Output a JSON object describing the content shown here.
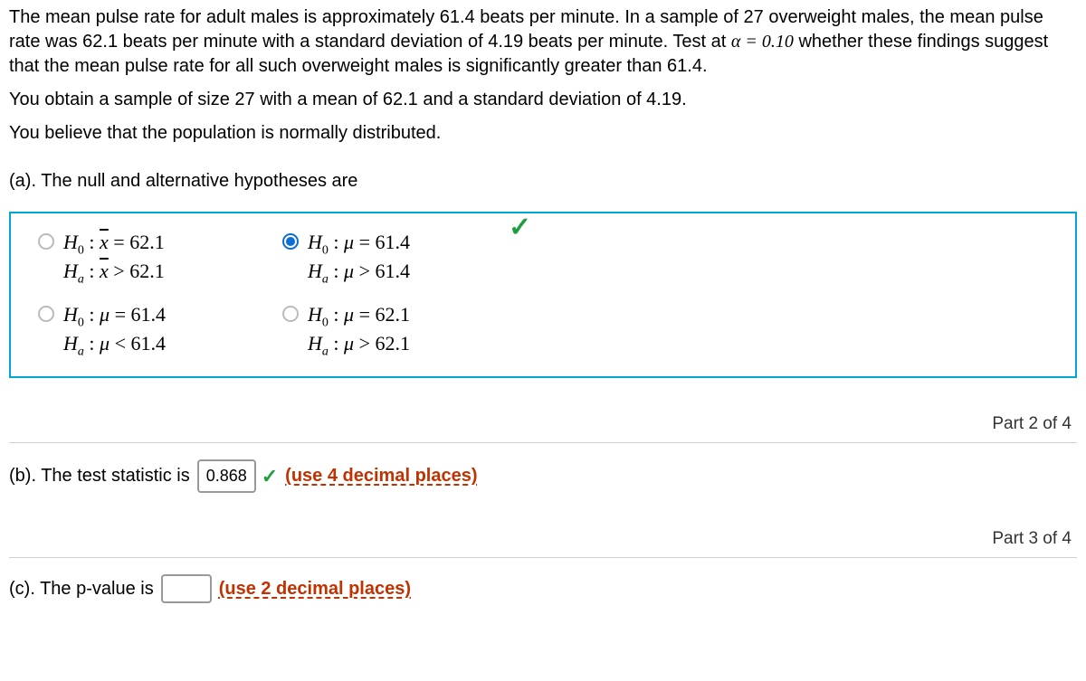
{
  "problem": {
    "line1": "The mean pulse rate for adult males is approximately 61.4 beats per minute.  In a sample of 27 overweight males, the mean pulse rate was 62.1 beats per minute with a standard deviation of 4.19 beats per minute.  Test at ",
    "alpha_expr": "α = 0.10",
    "line1b": " whether these findings suggest that the mean pulse rate for all such overweight males is significantly greater than 61.4.",
    "line2": "You obtain a sample of size 27 with a mean of 62.1 and a standard deviation of 4.19.",
    "line3": "You believe that the population is normally distributed."
  },
  "partA": {
    "label": "(a). The null and alternative hypotheses are",
    "options": [
      {
        "id": "opt1",
        "selected": false,
        "h0_lhs": "x̄",
        "h0_val": "62.1",
        "ha_lhs": "x̄",
        "ha_op": ">",
        "ha_val": "62.1",
        "bar": true
      },
      {
        "id": "opt2",
        "selected": true,
        "h0_lhs": "μ",
        "h0_val": "61.4",
        "ha_lhs": "μ",
        "ha_op": ">",
        "ha_val": "61.4",
        "bar": false
      },
      {
        "id": "opt3",
        "selected": false,
        "h0_lhs": "μ",
        "h0_val": "61.4",
        "ha_lhs": "μ",
        "ha_op": "<",
        "ha_val": "61.4",
        "bar": false
      },
      {
        "id": "opt4",
        "selected": false,
        "h0_lhs": "μ",
        "h0_val": "62.1",
        "ha_lhs": "μ",
        "ha_op": ">",
        "ha_val": "62.1",
        "bar": false
      }
    ]
  },
  "part2Label": "Part 2 of 4",
  "partB": {
    "prefix": "(b). The test statistic is",
    "answer": "0.868",
    "correct": true,
    "hint": "(use 4 decimal places)"
  },
  "part3Label": "Part 3 of 4",
  "partC": {
    "prefix": "(c). The p-value is",
    "answer": "",
    "hint": "(use 2 decimal places)"
  }
}
